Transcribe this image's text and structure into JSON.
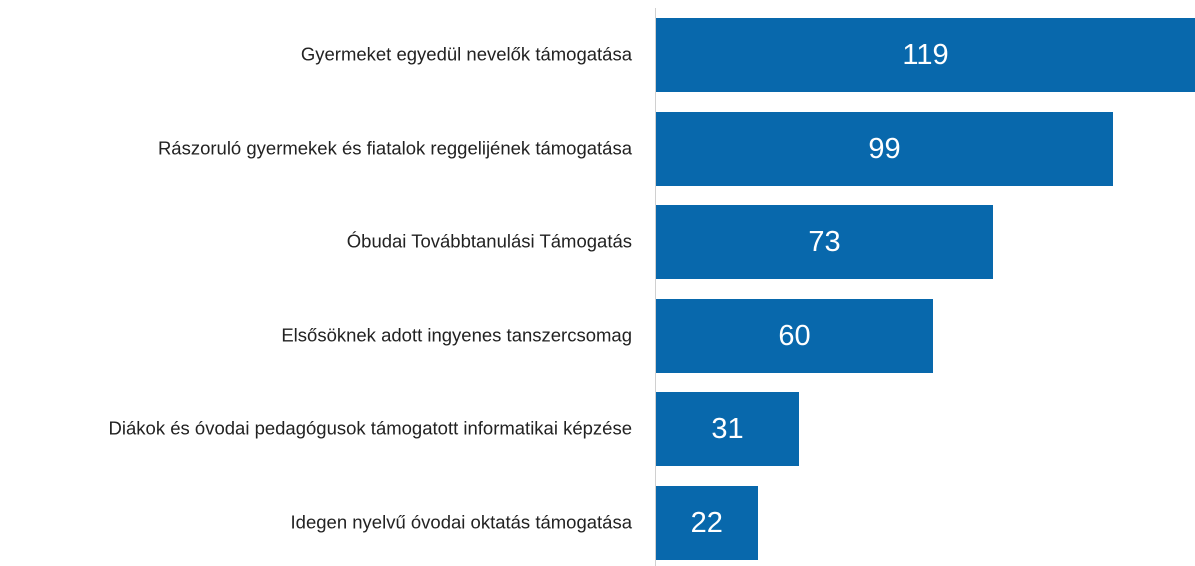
{
  "chart_data": {
    "type": "bar",
    "orientation": "horizontal",
    "categories": [
      "Gyermeket egyedül nevelők támogatása",
      "Rászoruló gyermekek és fiatalok reggelijének támogatása",
      "Óbudai Továbbtanulási Támogatás",
      "Elsősöknek adott ingyenes tanszercsomag",
      "Diákok és óvodai pedagógusok támogatott informatikai képzése",
      "Idegen nyelvű óvodai oktatás támogatása"
    ],
    "values": [
      119,
      99,
      73,
      60,
      31,
      22
    ],
    "color": "#0868ac"
  }
}
